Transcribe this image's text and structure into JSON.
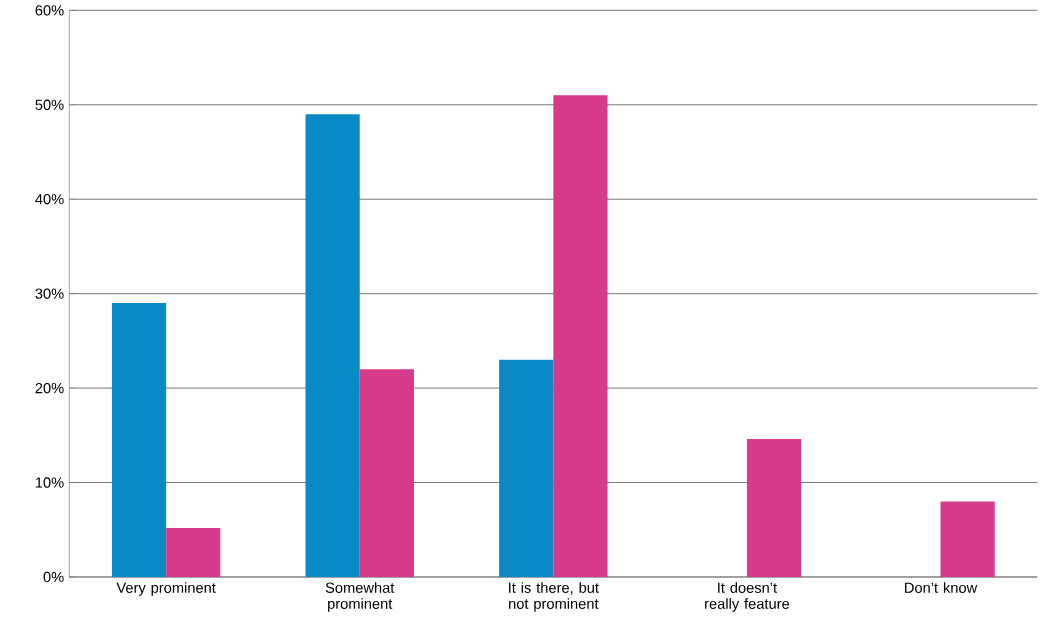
{
  "chart_data": {
    "type": "bar",
    "categories": [
      "Very prominent",
      "Somewhat prominent",
      "It is there, but not prominent",
      "It doesn’t really feature",
      "Don’t know"
    ],
    "series": [
      {
        "color": "#0a8ac4",
        "values": [
          29,
          49,
          23,
          null,
          null
        ]
      },
      {
        "color": "#d63a8a",
        "values": [
          5.2,
          22,
          51,
          14.6,
          8
        ]
      }
    ],
    "ylim": [
      0,
      60
    ],
    "yticks": [
      {
        "value": 0,
        "label": "0%"
      },
      {
        "value": 10,
        "label": "10%"
      },
      {
        "value": 20,
        "label": "20%"
      },
      {
        "value": 30,
        "label": "30%"
      },
      {
        "value": 40,
        "label": "40%"
      },
      {
        "value": 50,
        "label": "50%"
      },
      {
        "value": 60,
        "label": "60%"
      }
    ],
    "grid": "y"
  }
}
